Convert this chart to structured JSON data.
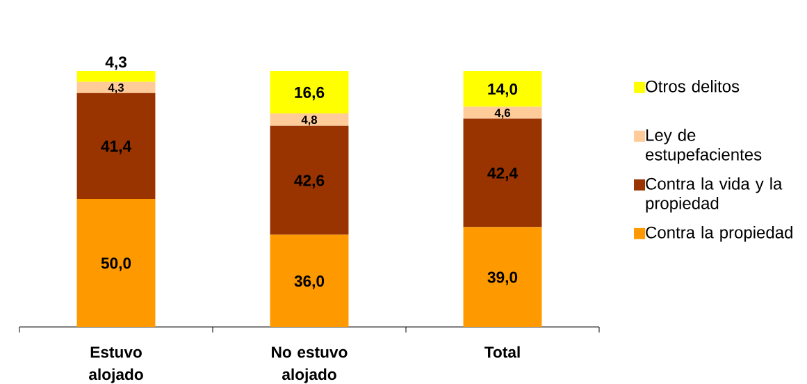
{
  "chart_data": {
    "type": "bar",
    "stacked": true,
    "legend": "right",
    "categories": [
      "Estuvo alojado",
      "No estuvo alojado",
      "Total"
    ],
    "series": [
      {
        "name": "Contra la propiedad",
        "color": "#ff9900",
        "values": [
          50.0,
          36.0,
          39.0
        ],
        "value_labels": [
          "50,0",
          "36,0",
          "39,0"
        ]
      },
      {
        "name": "Contra la vida y la propiedad",
        "color": "#993300",
        "values": [
          41.4,
          42.6,
          42.4
        ],
        "value_labels": [
          "41,4",
          "42,6",
          "42,4"
        ]
      },
      {
        "name": "Ley de estupefacientes",
        "color": "#ffcc99",
        "values": [
          4.3,
          4.8,
          4.6
        ],
        "value_labels": [
          "4,3",
          "4,8",
          "4,6"
        ]
      },
      {
        "name": "Otros delitos",
        "color": "#ffff00",
        "values": [
          4.3,
          16.6,
          14.0
        ],
        "value_labels": [
          "4,3",
          "16,6",
          "14,0"
        ]
      }
    ]
  }
}
